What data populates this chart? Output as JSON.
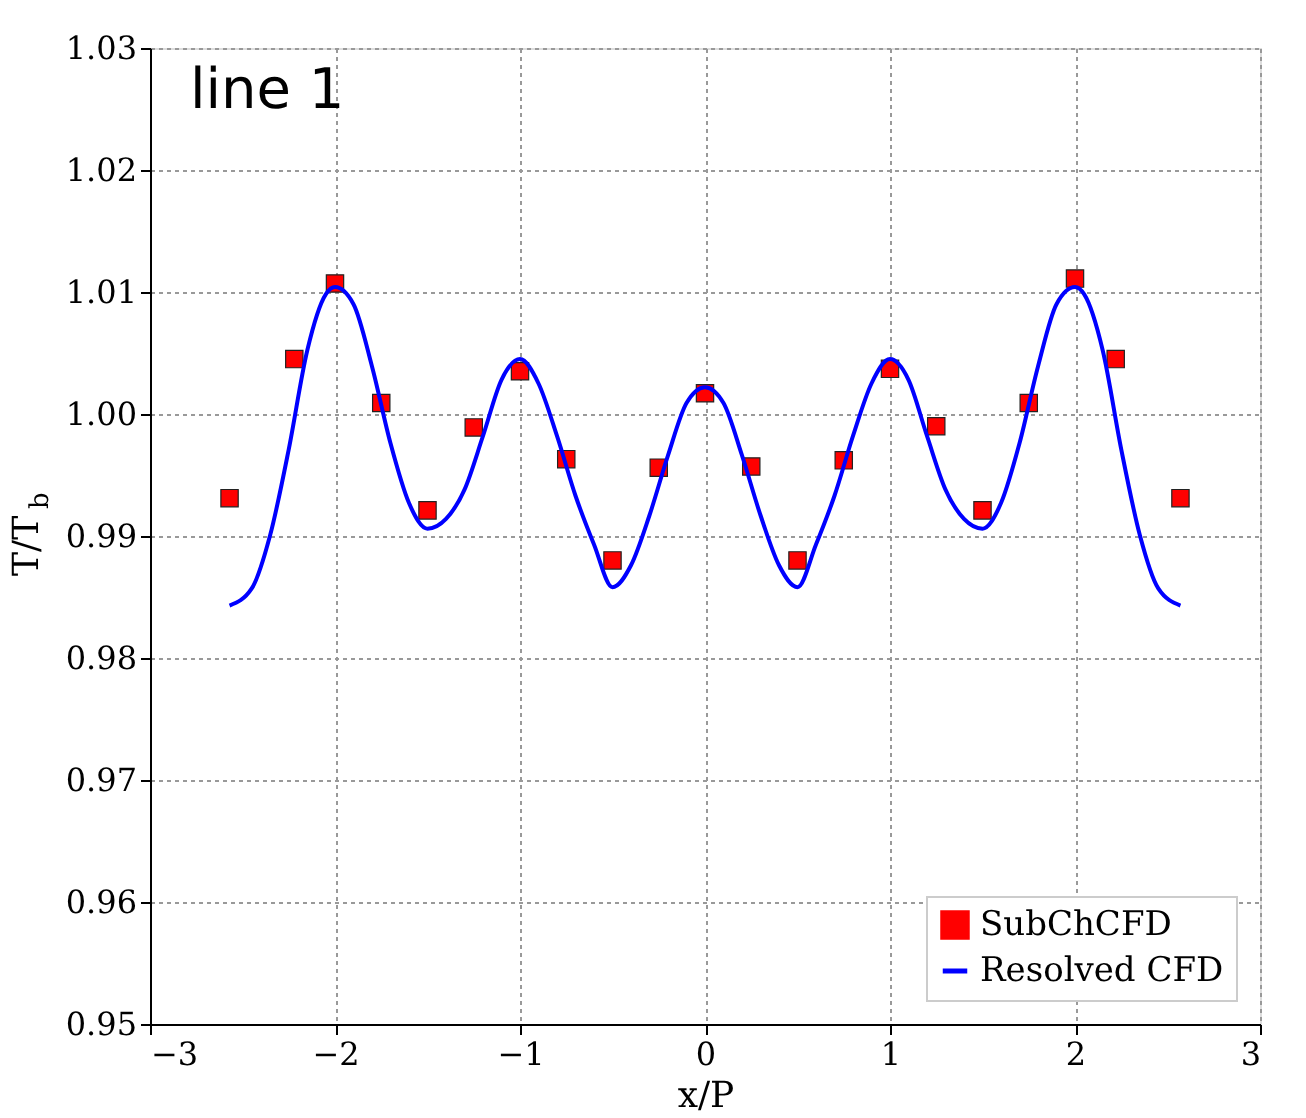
{
  "chart_data": {
    "type": "scatter",
    "annotations": [
      "line 1"
    ],
    "xlabel": "x/P",
    "ylabel": "T/T$_{b}$",
    "xlim": [
      -3,
      3
    ],
    "xticks": [
      -3,
      -2,
      -1,
      0,
      1,
      2,
      3
    ],
    "ylim": [
      0.95,
      1.03
    ],
    "yticks": [
      0.95,
      0.96,
      0.97,
      0.98,
      0.99,
      {
        "value": 1,
        "label": "1.00"
      },
      1.01,
      1.02,
      1.03
    ],
    "grid": true,
    "legend": "bottom right",
    "series": [
      {
        "name": "SubChCFD",
        "marker": "square",
        "color": "#ff0000",
        "x": [
          -2.57,
          -2.22,
          -2.0,
          -1.75,
          -1.5,
          -1.25,
          -1.0,
          -0.75,
          -0.5,
          -0.25,
          0.0,
          0.25,
          0.5,
          0.75,
          1.0,
          1.25,
          1.5,
          1.75,
          2.0,
          2.22,
          2.57
        ],
        "values": [
          0.9931,
          1.0045,
          1.0107,
          1.0009,
          0.9921,
          0.9989,
          1.0035,
          0.9963,
          0.988,
          0.9956,
          1.0017,
          0.9957,
          0.988,
          0.9962,
          1.0037,
          0.999,
          0.9921,
          1.0009,
          1.0111,
          1.0045,
          0.9931
        ]
      },
      {
        "name": "Resolved CFD",
        "type": "line",
        "line_style": "solid",
        "color": "#0000ff",
        "x": [
          -2.57,
          -2.45,
          -2.35,
          -2.25,
          -2.15,
          -2.05,
          -2.0,
          -1.9,
          -1.8,
          -1.7,
          -1.6,
          -1.5,
          -1.4,
          -1.3,
          -1.2,
          -1.1,
          -1.0,
          -0.9,
          -0.8,
          -0.7,
          -0.6,
          -0.5,
          -0.4,
          -0.3,
          -0.2,
          -0.1,
          0.0,
          0.1,
          0.2,
          0.3,
          0.4,
          0.5,
          0.6,
          0.7,
          0.8,
          0.9,
          1.0,
          1.1,
          1.2,
          1.3,
          1.4,
          1.5,
          1.6,
          1.7,
          1.8,
          1.9,
          2.0,
          2.05,
          2.15,
          2.25,
          2.35,
          2.45,
          2.57
        ],
        "values": [
          0.9843,
          0.9857,
          0.9901,
          0.9971,
          1.0052,
          1.0098,
          1.0104,
          1.009,
          1.0039,
          0.9976,
          0.9927,
          0.9906,
          0.9914,
          0.9938,
          0.9982,
          1.0028,
          1.0045,
          1.0025,
          0.9982,
          0.9933,
          0.9893,
          0.9858,
          0.9876,
          0.9917,
          0.9966,
          1.0009,
          1.0022,
          1.0009,
          0.9966,
          0.9917,
          0.9876,
          0.9858,
          0.9893,
          0.9933,
          0.9982,
          1.0025,
          1.0045,
          1.0028,
          0.9982,
          0.9938,
          0.9914,
          0.9906,
          0.9927,
          0.9976,
          1.0039,
          1.009,
          1.0104,
          1.0098,
          1.0052,
          0.9971,
          0.9901,
          0.9857,
          0.9843
        ]
      }
    ]
  }
}
